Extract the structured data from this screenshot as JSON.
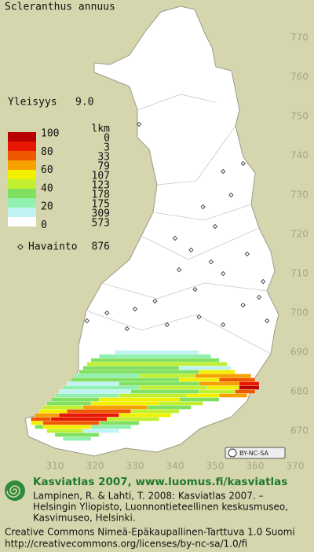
{
  "title": "Scleranthus annuus",
  "frequency": {
    "label": "Yleisyys",
    "value": "9.0"
  },
  "legend": {
    "count_header": "lkm",
    "scale_labels": [
      "100",
      "80",
      "60",
      "40",
      "20",
      "0"
    ],
    "rows": [
      {
        "color": "#b80000",
        "count": 0
      },
      {
        "color": "#e81800",
        "count": 3
      },
      {
        "color": "#f05800",
        "count": 33
      },
      {
        "color": "#f8a000",
        "count": 79
      },
      {
        "color": "#f0f000",
        "count": 107
      },
      {
        "color": "#c0f030",
        "count": 123
      },
      {
        "color": "#80e060",
        "count": 178
      },
      {
        "color": "#90f0b0",
        "count": 175
      },
      {
        "color": "#c0f4f4",
        "count": 309
      },
      {
        "color": "#ffffff",
        "count": 573
      }
    ]
  },
  "observations": {
    "label": "Havainto",
    "count": 876
  },
  "northing_labels": [
    "770",
    "760",
    "750",
    "740",
    "730",
    "720",
    "710",
    "700",
    "690",
    "680",
    "670"
  ],
  "easting_labels": [
    "310",
    "320",
    "330",
    "340",
    "350",
    "360",
    "370"
  ],
  "license_badge": "BY-NC-SA",
  "footer": {
    "heading": "Kasviatlas 2007, www.luomus.fi/kasviatlas",
    "citation": [
      "Lampinen, R. & Lahti, T. 2008: Kasviatlas 2007. –",
      "Helsingin Yliopisto, Luonnontieteellinen keskusmuseo,",
      "Kasvimuseo, Helsinki."
    ],
    "license": [
      "Creative Commons Nimeä-Epäkaupallinen-Tarttuva 1.0 Suomi",
      "http://creativecommons.org/licenses/by-nc-sa/1.0/fi"
    ]
  },
  "grid_cells": [
    [
      690,
      325,
      345,
      8
    ],
    [
      689,
      321,
      348,
      7
    ],
    [
      688,
      319,
      350,
      6
    ],
    [
      687,
      318,
      352,
      5
    ],
    [
      686,
      317,
      340,
      6
    ],
    [
      686,
      341,
      353,
      8
    ],
    [
      685,
      316,
      345,
      6
    ],
    [
      685,
      346,
      354,
      4
    ],
    [
      684,
      315,
      330,
      7
    ],
    [
      684,
      331,
      344,
      5
    ],
    [
      684,
      345,
      358,
      3
    ],
    [
      683,
      314,
      340,
      6
    ],
    [
      683,
      341,
      350,
      4
    ],
    [
      683,
      351,
      359,
      2
    ],
    [
      682,
      313,
      325,
      8
    ],
    [
      682,
      326,
      345,
      6
    ],
    [
      682,
      346,
      355,
      3
    ],
    [
      682,
      356,
      360,
      1
    ],
    [
      681,
      312,
      330,
      7
    ],
    [
      681,
      331,
      347,
      5
    ],
    [
      681,
      348,
      355,
      4
    ],
    [
      681,
      356,
      360,
      0
    ],
    [
      680,
      311,
      328,
      8
    ],
    [
      680,
      329,
      345,
      6
    ],
    [
      680,
      346,
      354,
      5
    ],
    [
      680,
      355,
      359,
      2
    ],
    [
      679,
      310,
      325,
      7
    ],
    [
      679,
      326,
      342,
      5
    ],
    [
      679,
      343,
      350,
      4
    ],
    [
      679,
      351,
      357,
      3
    ],
    [
      678,
      309,
      320,
      6
    ],
    [
      678,
      321,
      340,
      4
    ],
    [
      678,
      341,
      350,
      6
    ],
    [
      677,
      308,
      318,
      6
    ],
    [
      677,
      319,
      335,
      4
    ],
    [
      677,
      336,
      346,
      5
    ],
    [
      676,
      307,
      316,
      5
    ],
    [
      676,
      317,
      332,
      3
    ],
    [
      676,
      333,
      343,
      6
    ],
    [
      675,
      306,
      312,
      4
    ],
    [
      675,
      313,
      328,
      2
    ],
    [
      675,
      329,
      340,
      5
    ],
    [
      674,
      305,
      310,
      3
    ],
    [
      674,
      311,
      325,
      1
    ],
    [
      674,
      326,
      338,
      4
    ],
    [
      673,
      304,
      308,
      2
    ],
    [
      673,
      309,
      322,
      1
    ],
    [
      673,
      323,
      335,
      5
    ],
    [
      672,
      304,
      306,
      4
    ],
    [
      672,
      307,
      320,
      2
    ],
    [
      672,
      321,
      330,
      6
    ],
    [
      671,
      305,
      306,
      6
    ],
    [
      671,
      307,
      318,
      4
    ],
    [
      671,
      319,
      328,
      7
    ],
    [
      670,
      308,
      316,
      5
    ],
    [
      670,
      317,
      325,
      8
    ],
    [
      669,
      310,
      320,
      6
    ],
    [
      668,
      312,
      318,
      7
    ]
  ],
  "observation_points": [
    [
      331,
      748
    ],
    [
      357,
      738
    ],
    [
      352,
      736
    ],
    [
      354,
      730
    ],
    [
      347,
      727
    ],
    [
      344,
      716
    ],
    [
      349,
      713
    ],
    [
      352,
      710
    ],
    [
      341,
      711
    ],
    [
      345,
      706
    ],
    [
      335,
      703
    ],
    [
      330,
      701
    ],
    [
      323,
      700
    ],
    [
      361,
      704
    ],
    [
      357,
      702
    ],
    [
      363,
      698
    ],
    [
      328,
      696
    ],
    [
      338,
      697
    ],
    [
      346,
      699
    ],
    [
      352,
      697
    ],
    [
      318,
      698
    ],
    [
      358,
      715
    ],
    [
      362,
      708
    ],
    [
      350,
      722
    ],
    [
      340,
      719
    ]
  ]
}
